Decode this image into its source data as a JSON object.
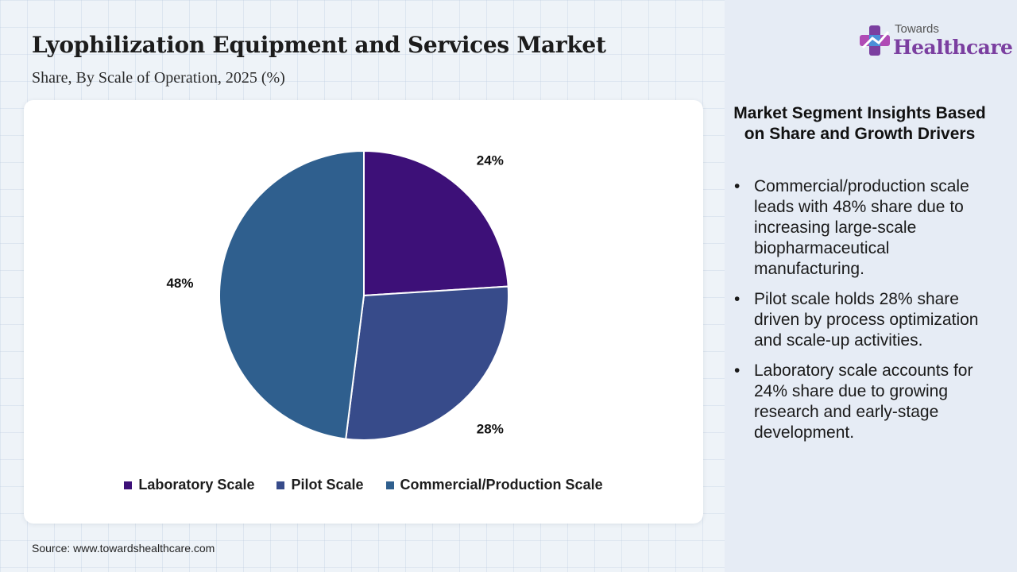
{
  "header": {
    "title": "Lyophilization Equipment and Services Market",
    "subtitle": "Share, By Scale of Operation, 2025 (%)"
  },
  "logo": {
    "small": "Towards",
    "big": "Healthcare"
  },
  "colors": {
    "laboratory": "#3d1078",
    "pilot": "#374b8a",
    "commercial": "#2f5f8e"
  },
  "chart_data": {
    "type": "pie",
    "title": "Lyophilization Equipment and Services Market",
    "subtitle": "Share, By Scale of Operation, 2025 (%)",
    "categories": [
      "Laboratory Scale",
      "Pilot Scale",
      "Commercial/Production Scale"
    ],
    "values": [
      24,
      28,
      48
    ],
    "labels": [
      "24%",
      "28%",
      "48%"
    ],
    "colors": [
      "#3d1078",
      "#374b8a",
      "#2f5f8e"
    ],
    "legend_position": "bottom"
  },
  "legend": [
    {
      "label": "Laboratory Scale",
      "color": "#3d1078"
    },
    {
      "label": "Pilot Scale",
      "color": "#374b8a"
    },
    {
      "label": "Commercial/Production Scale",
      "color": "#2f5f8e"
    }
  ],
  "insights": {
    "title": "Market Segment Insights Based on Share and Growth Drivers",
    "bullet_symbol": "•",
    "bullets": [
      "Commercial/production scale leads with 48% share due to increasing large-scale biopharmaceutical manufacturing.",
      "Pilot scale holds 28% share driven by process optimization and scale-up activities.",
      "Laboratory scale accounts for 24% share due to growing research and early-stage development."
    ]
  },
  "source": "Source: www.towardshealthcare.com"
}
